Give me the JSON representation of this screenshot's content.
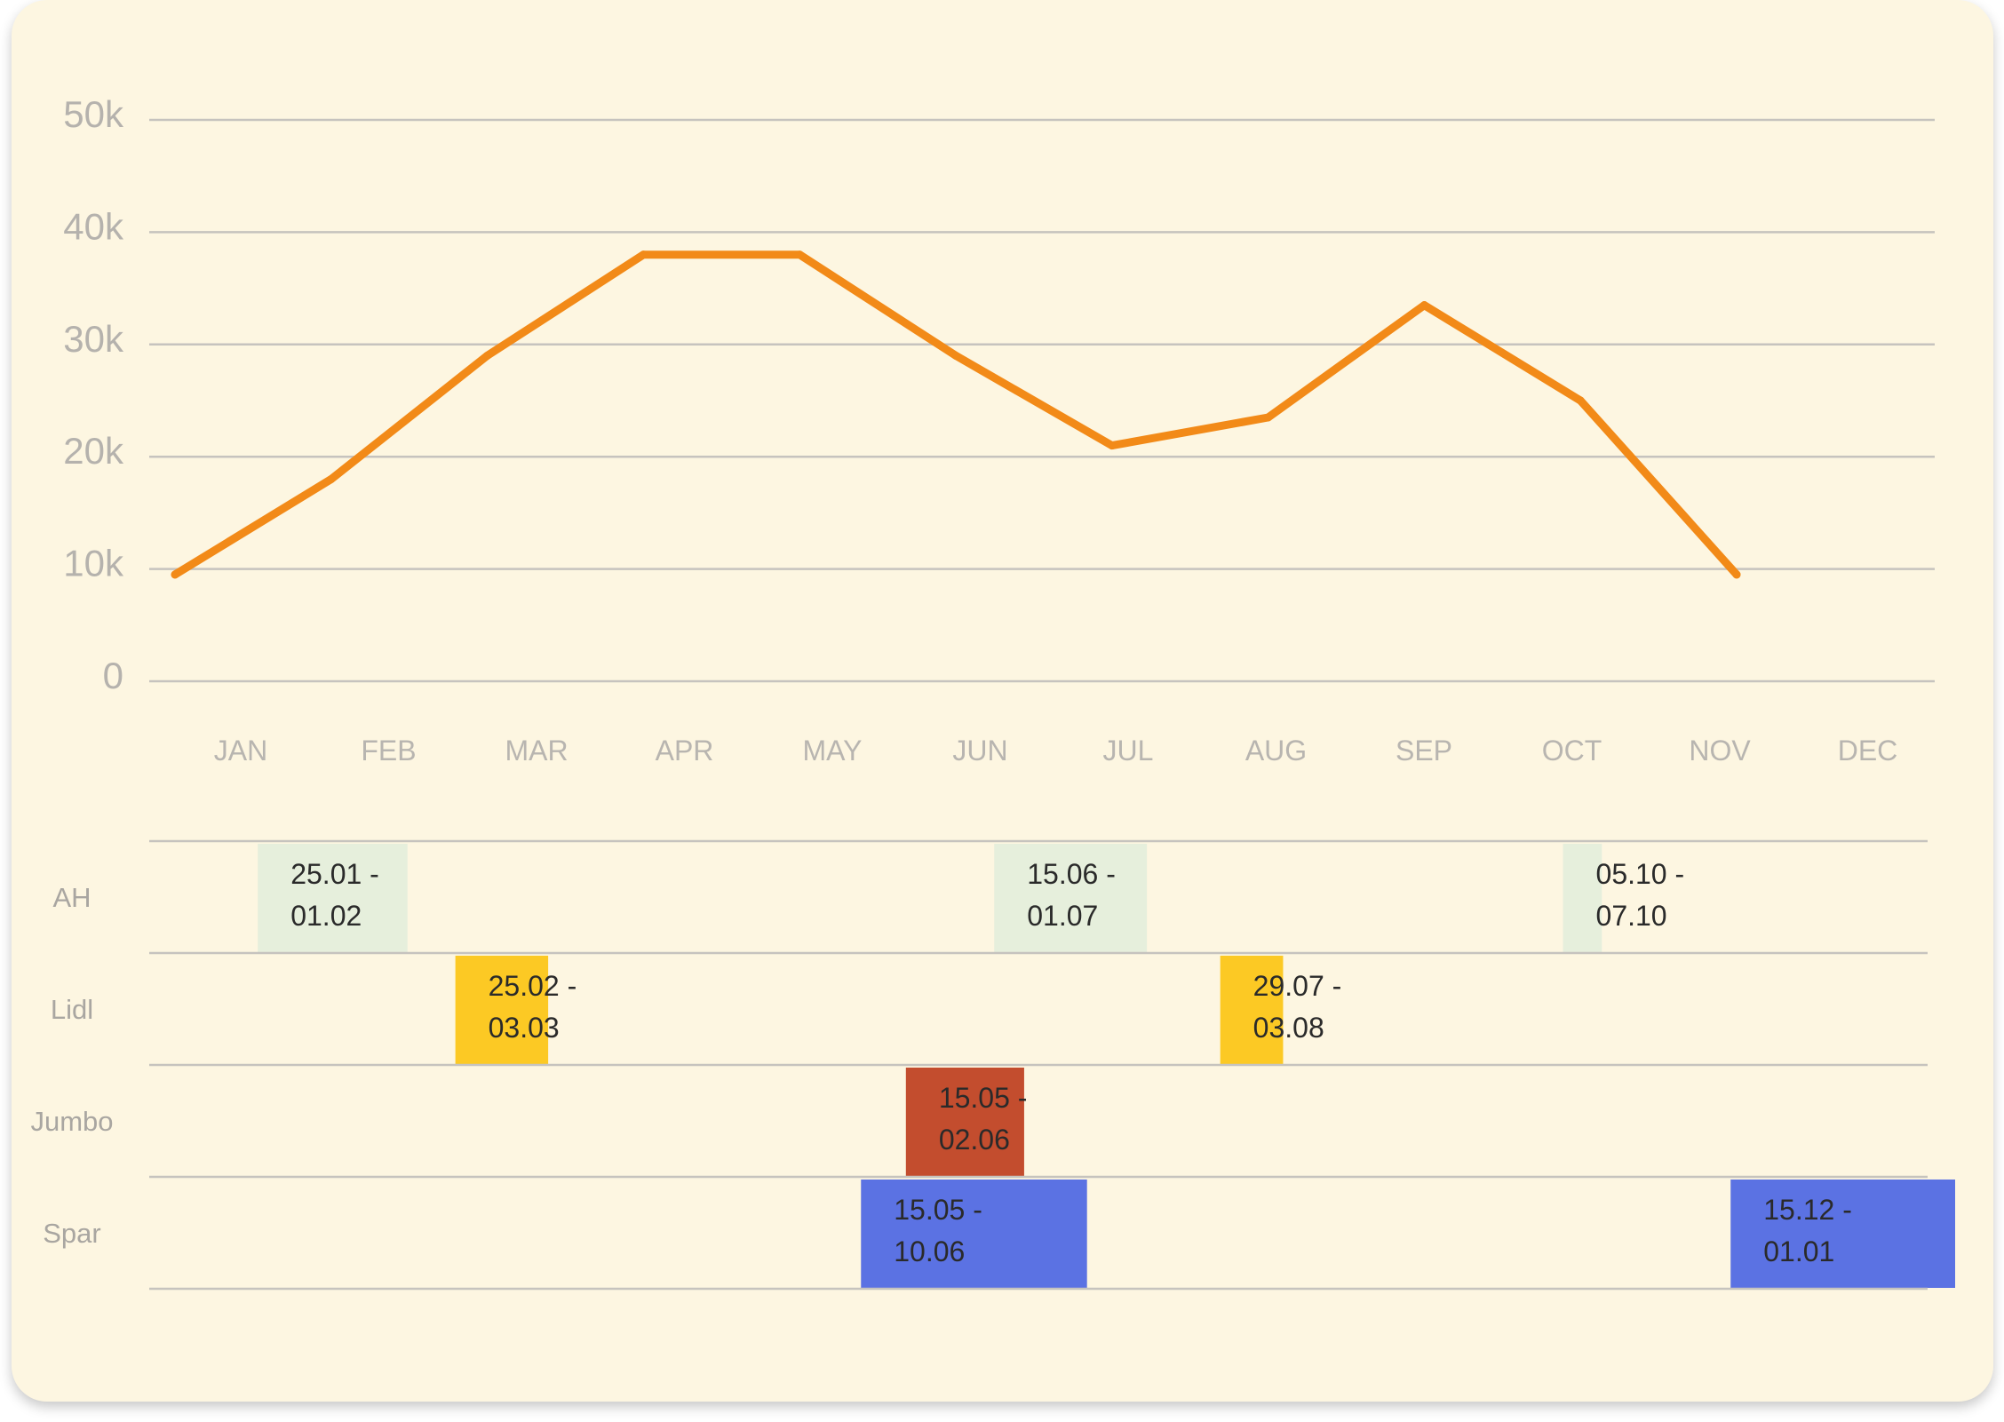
{
  "chart_data": [
    {
      "type": "line",
      "categories": [
        "JAN",
        "FEB",
        "MAR",
        "APR",
        "MAY",
        "JUN",
        "JUL",
        "AUG",
        "SEP",
        "OCT",
        "NOV",
        "DEC"
      ],
      "x_points": [
        0,
        1,
        2,
        3,
        4,
        5,
        6,
        7,
        8,
        9,
        10,
        11
      ],
      "values": [
        9500,
        18000,
        29000,
        38000,
        38000,
        29000,
        21000,
        23500,
        33500,
        25000,
        9500,
        null
      ],
      "yticks": [
        "0",
        "10k",
        "20k",
        "30k",
        "40k",
        "50k"
      ],
      "ytick_values": [
        0,
        10000,
        20000,
        30000,
        40000,
        50000
      ],
      "ylim": [
        0,
        50000
      ],
      "grid": true,
      "color": "#f28a18"
    },
    {
      "type": "timeline",
      "rows": [
        {
          "name": "AH",
          "color": "#e6efdc",
          "bars": [
            {
              "label": "25.01 - 01.02",
              "start": 0.66,
              "end": 1.66
            },
            {
              "label": "15.06 - 01.07",
              "start": 5.58,
              "end": 6.6
            },
            {
              "label": "05.10 - 07.10",
              "start": 9.38,
              "end": 9.64
            }
          ]
        },
        {
          "name": "Lidl",
          "color": "#fcc924",
          "bars": [
            {
              "label": "25.02 - 03.03",
              "start": 1.98,
              "end": 2.6
            },
            {
              "label": "29.07 - 03.08",
              "start": 7.09,
              "end": 7.51
            }
          ]
        },
        {
          "name": "Jumbo",
          "color": "#c34d2e",
          "bars": [
            {
              "label": "15.05 - 02.06",
              "start": 4.99,
              "end": 5.78
            }
          ]
        },
        {
          "name": "Spar",
          "color": "#5b72e3",
          "bars": [
            {
              "label": "15.05 - 10.06",
              "start": 4.69,
              "end": 6.2
            },
            {
              "label": "15.12 - 01.01",
              "start": 10.5,
              "end": 12.0
            }
          ]
        }
      ]
    }
  ]
}
